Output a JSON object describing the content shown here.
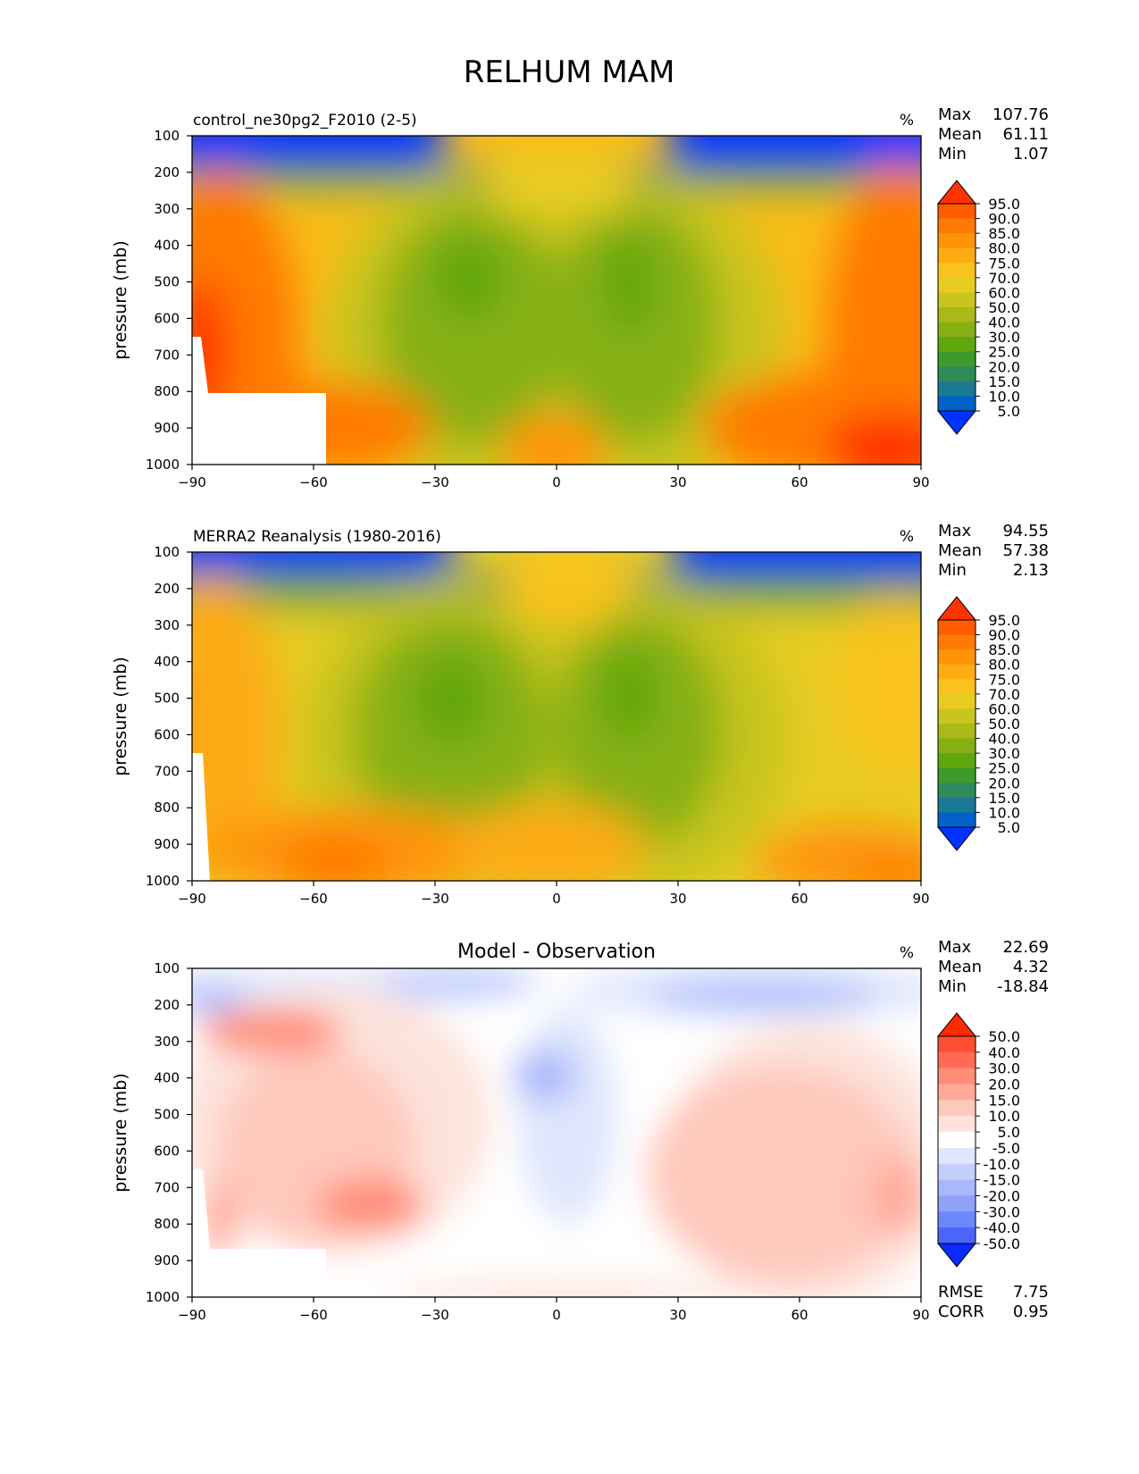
{
  "title": "RELHUM MAM",
  "panels": [
    {
      "subtitle": "control_ne30pg2_F2010 (2-5)",
      "units": "%",
      "stats": [
        {
          "label": "Max",
          "value": "107.76"
        },
        {
          "label": "Mean",
          "value": "61.11"
        },
        {
          "label": "Min",
          "value": "1.07"
        }
      ],
      "colorbar": {
        "levels": [
          "95.0",
          "90.0",
          "85.0",
          "80.0",
          "75.0",
          "70.0",
          "60.0",
          "50.0",
          "40.0",
          "30.0",
          "25.0",
          "20.0",
          "15.0",
          "10.0",
          "5.0"
        ],
        "colors": [
          "#ff3300",
          "#ff5c00",
          "#ff7a05",
          "#ff9408",
          "#fcab12",
          "#f9c21c",
          "#e8cc24",
          "#c9c41e",
          "#a8ba17",
          "#86b012",
          "#5fa60f",
          "#3e9a2a",
          "#2f8a5a",
          "#1b7a93",
          "#0061c8",
          "#0033ff"
        ]
      },
      "extra": []
    },
    {
      "subtitle": "MERRA2 Reanalysis (1980-2016)",
      "units": "%",
      "stats": [
        {
          "label": "Max",
          "value": "94.55"
        },
        {
          "label": "Mean",
          "value": "57.38"
        },
        {
          "label": "Min",
          "value": "2.13"
        }
      ],
      "colorbar": {
        "levels": [
          "95.0",
          "90.0",
          "85.0",
          "80.0",
          "75.0",
          "70.0",
          "60.0",
          "50.0",
          "40.0",
          "30.0",
          "25.0",
          "20.0",
          "15.0",
          "10.0",
          "5.0"
        ],
        "colors": [
          "#ff3300",
          "#ff5c00",
          "#ff7a05",
          "#ff9408",
          "#fcab12",
          "#f9c21c",
          "#e8cc24",
          "#c9c41e",
          "#a8ba17",
          "#86b012",
          "#5fa60f",
          "#3e9a2a",
          "#2f8a5a",
          "#1b7a93",
          "#0061c8",
          "#0033ff"
        ]
      },
      "extra": []
    },
    {
      "subtitle": "Model - Observation",
      "units": "%",
      "stats": [
        {
          "label": "Max",
          "value": "22.69"
        },
        {
          "label": "Mean",
          "value": "4.32"
        },
        {
          "label": "Min",
          "value": "-18.84"
        }
      ],
      "colorbar": {
        "levels": [
          "50.0",
          "40.0",
          "30.0",
          "20.0",
          "15.0",
          "10.0",
          "5.0",
          "-5.0",
          "-10.0",
          "-15.0",
          "-20.0",
          "-30.0",
          "-40.0",
          "-50.0"
        ],
        "colors": [
          "#ff2a00",
          "#ff4d33",
          "#ff6b55",
          "#ff8c77",
          "#ffaa99",
          "#ffc8bc",
          "#fde3dc",
          "#ffffff",
          "#dfe6fd",
          "#c4cffc",
          "#a9b8fb",
          "#8ea2fa",
          "#6d86fa",
          "#4a66fb",
          "#0a2aff"
        ]
      },
      "extra": [
        {
          "label": "RMSE",
          "value": "7.75"
        },
        {
          "label": "CORR",
          "value": "0.95"
        }
      ]
    }
  ],
  "chart_data": [
    {
      "type": "heatmap",
      "title": "control_ne30pg2_F2010 (2-5)",
      "ylabel": "pressure (mb)",
      "xticks": [
        "−90",
        "−60",
        "−30",
        "0",
        "30",
        "60",
        "90"
      ],
      "yticks": [
        "100",
        "200",
        "300",
        "400",
        "500",
        "600",
        "700",
        "800",
        "900",
        "1000"
      ],
      "xlim": [
        -90,
        90
      ],
      "ylim": [
        1000,
        100
      ],
      "colorbar_levels": [
        5,
        10,
        15,
        20,
        25,
        30,
        40,
        50,
        60,
        70,
        75,
        80,
        85,
        90,
        95
      ],
      "stats": {
        "max": 107.76,
        "mean": 61.11,
        "min": 1.07
      }
    },
    {
      "type": "heatmap",
      "title": "MERRA2 Reanalysis (1980-2016)",
      "ylabel": "pressure (mb)",
      "xticks": [
        "−90",
        "−60",
        "−30",
        "0",
        "30",
        "60",
        "90"
      ],
      "yticks": [
        "100",
        "200",
        "300",
        "400",
        "500",
        "600",
        "700",
        "800",
        "900",
        "1000"
      ],
      "xlim": [
        -90,
        90
      ],
      "ylim": [
        1000,
        100
      ],
      "colorbar_levels": [
        5,
        10,
        15,
        20,
        25,
        30,
        40,
        50,
        60,
        70,
        75,
        80,
        85,
        90,
        95
      ],
      "stats": {
        "max": 94.55,
        "mean": 57.38,
        "min": 2.13
      }
    },
    {
      "type": "heatmap",
      "title": "Model - Observation",
      "ylabel": "pressure (mb)",
      "xticks": [
        "−90",
        "−60",
        "−30",
        "0",
        "30",
        "60",
        "90"
      ],
      "yticks": [
        "100",
        "200",
        "300",
        "400",
        "500",
        "600",
        "700",
        "800",
        "900",
        "1000"
      ],
      "xlim": [
        -90,
        90
      ],
      "ylim": [
        1000,
        100
      ],
      "colorbar_levels": [
        -50,
        -40,
        -30,
        -20,
        -15,
        -10,
        -5,
        5,
        10,
        15,
        20,
        30,
        40,
        50
      ],
      "stats": {
        "max": 22.69,
        "mean": 4.32,
        "min": -18.84,
        "rmse": 7.75,
        "corr": 0.95
      }
    }
  ]
}
